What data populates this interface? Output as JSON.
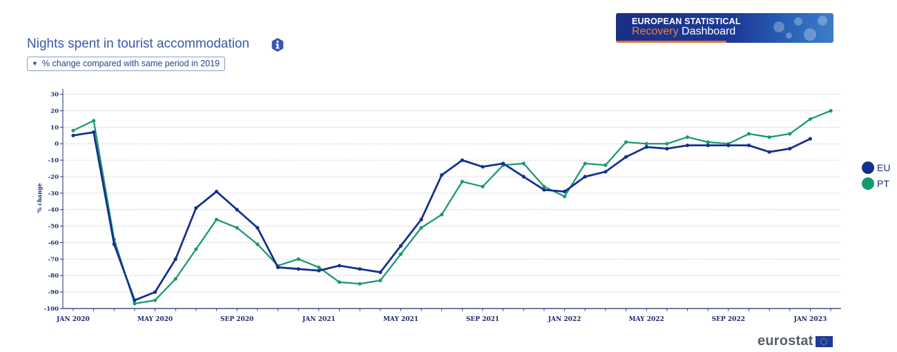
{
  "header": {
    "title": "Nights spent in tourist accommodation",
    "dropdown_label": "% change compared with same period in 2019",
    "info_icon": "info-icon"
  },
  "banner": {
    "line1": "EUROPEAN STATISTICAL",
    "line2a": "Recovery",
    "line2b": " Dashboard"
  },
  "footer": {
    "logo_text": "eurostat"
  },
  "colors": {
    "EU": "#132f8f",
    "PT": "#1a9970",
    "axis": "#1a2b6d",
    "title": "#3a56a8"
  },
  "chart_data": {
    "type": "line",
    "title": "",
    "xlabel": "",
    "ylabel": "% change",
    "ylim": [
      -100,
      30
    ],
    "yticks": [
      30,
      20,
      10,
      0,
      -10,
      -20,
      -30,
      -40,
      -50,
      -60,
      -70,
      -80,
      -90,
      -100
    ],
    "grid": true,
    "legend_position": "right",
    "x": [
      "2020-01",
      "2020-02",
      "2020-03",
      "2020-04",
      "2020-05",
      "2020-06",
      "2020-07",
      "2020-08",
      "2020-09",
      "2020-10",
      "2020-11",
      "2020-12",
      "2021-01",
      "2021-02",
      "2021-03",
      "2021-04",
      "2021-05",
      "2021-06",
      "2021-07",
      "2021-08",
      "2021-09",
      "2021-10",
      "2021-11",
      "2021-12",
      "2022-01",
      "2022-02",
      "2022-03",
      "2022-04",
      "2022-05",
      "2022-06",
      "2022-07",
      "2022-08",
      "2022-09",
      "2022-10",
      "2022-11",
      "2022-12",
      "2023-01",
      "2023-02"
    ],
    "x_tick_labels": [
      {
        "x": "2020-01",
        "label": "JAN 2020"
      },
      {
        "x": "2020-05",
        "label": "MAY 2020"
      },
      {
        "x": "2020-09",
        "label": "SEP 2020"
      },
      {
        "x": "2021-01",
        "label": "JAN 2021"
      },
      {
        "x": "2021-05",
        "label": "MAY 2021"
      },
      {
        "x": "2021-09",
        "label": "SEP 2021"
      },
      {
        "x": "2022-01",
        "label": "JAN 2022"
      },
      {
        "x": "2022-05",
        "label": "MAY 2022"
      },
      {
        "x": "2022-09",
        "label": "SEP 2022"
      },
      {
        "x": "2023-01",
        "label": "JAN 2023"
      }
    ],
    "series": [
      {
        "name": "EU",
        "values": [
          5,
          7,
          -61,
          -95,
          -90,
          -70,
          -39,
          -29,
          -40,
          -51,
          -75,
          -76,
          -77,
          -74,
          -76,
          -78,
          -62,
          -46,
          -19,
          -10,
          -14,
          -12,
          -20,
          -28,
          -29,
          -20,
          -17,
          -8,
          -2,
          -3,
          -1,
          -1,
          -1,
          -1,
          -5,
          -3,
          3,
          null
        ]
      },
      {
        "name": "PT",
        "values": [
          8,
          14,
          -58,
          -97,
          -95,
          -82,
          -64,
          -46,
          -51,
          -61,
          -74,
          -70,
          -75,
          -84,
          -85,
          -83,
          -67,
          -51,
          -43,
          -23,
          -26,
          -13,
          -12,
          -26,
          -32,
          -12,
          -13,
          1,
          0,
          0,
          4,
          1,
          0,
          6,
          4,
          6,
          15,
          20
        ]
      }
    ]
  }
}
